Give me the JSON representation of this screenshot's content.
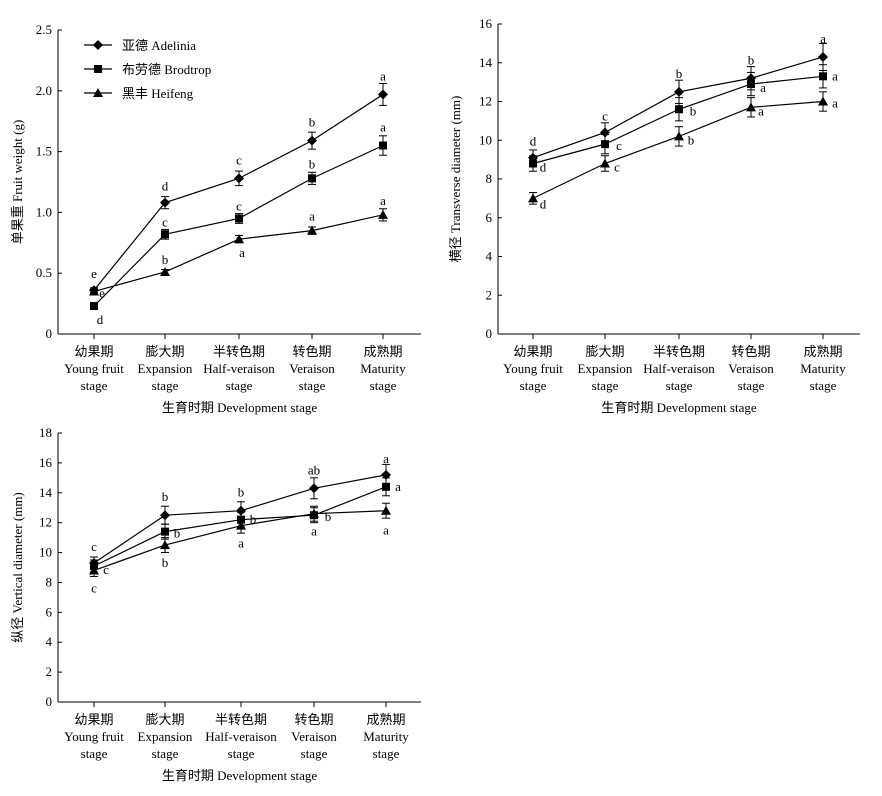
{
  "chart_data": [
    {
      "id": "weight",
      "type": "line",
      "categories": [
        {
          "zh": "幼果期",
          "en1": "Young fruit",
          "en2": "stage"
        },
        {
          "zh": "膨大期",
          "en1": "Expansion",
          "en2": "stage"
        },
        {
          "zh": "半转色期",
          "en1": "Half-veraison",
          "en2": "stage"
        },
        {
          "zh": "转色期",
          "en1": "Veraison",
          "en2": "stage"
        },
        {
          "zh": "成熟期",
          "en1": "Maturity",
          "en2": "stage"
        }
      ],
      "xlabel": "生育时期 Development stage",
      "ylabel": "单果重 Fruit weight (g)",
      "ylim": [
        0,
        2.5
      ],
      "yticks": [
        "0",
        "0.5",
        "1.0",
        "1.5",
        "2.0",
        "2.5"
      ],
      "legend": "top-left",
      "series": [
        {
          "name": "亚德 Adelinia",
          "marker": "diamond",
          "values": [
            0.36,
            1.08,
            1.28,
            1.59,
            1.97
          ],
          "errors": [
            0.02,
            0.05,
            0.06,
            0.07,
            0.09
          ],
          "letters": [
            "e",
            "d",
            "c",
            "b",
            "a"
          ],
          "letter_pos": "above"
        },
        {
          "name": "布劳德 Brodtrop",
          "marker": "square",
          "values": [
            0.23,
            0.82,
            0.95,
            1.28,
            1.55
          ],
          "errors": [
            0.02,
            0.04,
            0.04,
            0.05,
            0.08
          ],
          "letters": [
            "d",
            "c",
            "c",
            "b",
            "a"
          ],
          "letter_pos": "above"
        },
        {
          "name": "黑丰 Heifeng",
          "marker": "triangle",
          "values": [
            0.35,
            0.51,
            0.78,
            0.85,
            0.98
          ],
          "errors": [
            0.02,
            0.02,
            0.03,
            0.03,
            0.05
          ],
          "letters": [
            "e",
            "b",
            "a",
            "a",
            "a"
          ],
          "letter_pos": "mixed"
        }
      ]
    },
    {
      "id": "transverse",
      "type": "line",
      "categories": [
        {
          "zh": "幼果期",
          "en1": "Young fruit",
          "en2": "stage"
        },
        {
          "zh": "膨大期",
          "en1": "Expansion",
          "en2": "stage"
        },
        {
          "zh": "半转色期",
          "en1": "Half-veraison",
          "en2": "stage"
        },
        {
          "zh": "转色期",
          "en1": "Veraison",
          "en2": "stage"
        },
        {
          "zh": "成熟期",
          "en1": "Maturity",
          "en2": "stage"
        }
      ],
      "xlabel": "生育时期 Development stage",
      "ylabel": "横径 Transverse diameter (mm)",
      "ylim": [
        0,
        16
      ],
      "yticks": [
        "0",
        "2",
        "4",
        "6",
        "8",
        "10",
        "12",
        "14",
        "16"
      ],
      "series": [
        {
          "name": "亚德 Adelinia",
          "marker": "diamond",
          "values": [
            9.1,
            10.4,
            12.5,
            13.2,
            14.3
          ],
          "errors": [
            0.4,
            0.5,
            0.6,
            0.6,
            0.7
          ],
          "letters": [
            "d",
            "c",
            "b",
            "b",
            "a"
          ]
        },
        {
          "name": "布劳德 Brodtrop",
          "marker": "square",
          "values": [
            8.8,
            9.8,
            11.6,
            12.9,
            13.3
          ],
          "errors": [
            0.4,
            0.5,
            0.6,
            0.6,
            0.6
          ],
          "letters": [
            "d",
            "c",
            "b",
            "a",
            "a"
          ]
        },
        {
          "name": "黑丰 Heifeng",
          "marker": "triangle",
          "values": [
            7.0,
            8.8,
            10.2,
            11.7,
            12.0
          ],
          "errors": [
            0.3,
            0.4,
            0.5,
            0.5,
            0.5
          ],
          "letters": [
            "d",
            "c",
            "b",
            "a",
            "a"
          ]
        }
      ]
    },
    {
      "id": "vertical",
      "type": "line",
      "categories": [
        {
          "zh": "幼果期",
          "en1": "Young fruit",
          "en2": "stage"
        },
        {
          "zh": "膨大期",
          "en1": "Expansion",
          "en2": "stage"
        },
        {
          "zh": "半转色期",
          "en1": "Half-veraison",
          "en2": "stage"
        },
        {
          "zh": "转色期",
          "en1": "Veraison",
          "en2": "stage"
        },
        {
          "zh": "成熟期",
          "en1": "Maturity",
          "en2": "stage"
        }
      ],
      "xlabel": "生育时期 Development stage",
      "ylabel": "纵径 Vertical diameter (mm)",
      "ylim": [
        0,
        18
      ],
      "yticks": [
        "0",
        "2",
        "4",
        "6",
        "8",
        "10",
        "12",
        "14",
        "16",
        "18"
      ],
      "series": [
        {
          "name": "亚德 Adelinia",
          "marker": "diamond",
          "values": [
            9.3,
            12.5,
            12.8,
            14.3,
            15.2
          ],
          "errors": [
            0.4,
            0.6,
            0.6,
            0.7,
            0.7
          ],
          "letters": [
            "c",
            "b",
            "b",
            "ab",
            "a"
          ]
        },
        {
          "name": "布劳德 Brodtrop",
          "marker": "square",
          "values": [
            9.1,
            11.4,
            12.2,
            12.5,
            14.4
          ],
          "errors": [
            0.4,
            0.5,
            0.5,
            0.5,
            0.6
          ],
          "letters": [
            "c",
            "b",
            "b",
            "b",
            "a"
          ]
        },
        {
          "name": "黑丰 Heifeng",
          "marker": "triangle",
          "values": [
            8.8,
            10.5,
            11.8,
            12.6,
            12.8
          ],
          "errors": [
            0.4,
            0.5,
            0.5,
            0.5,
            0.5
          ],
          "letters": [
            "c",
            "b",
            "a",
            "a",
            "a"
          ]
        }
      ]
    }
  ]
}
